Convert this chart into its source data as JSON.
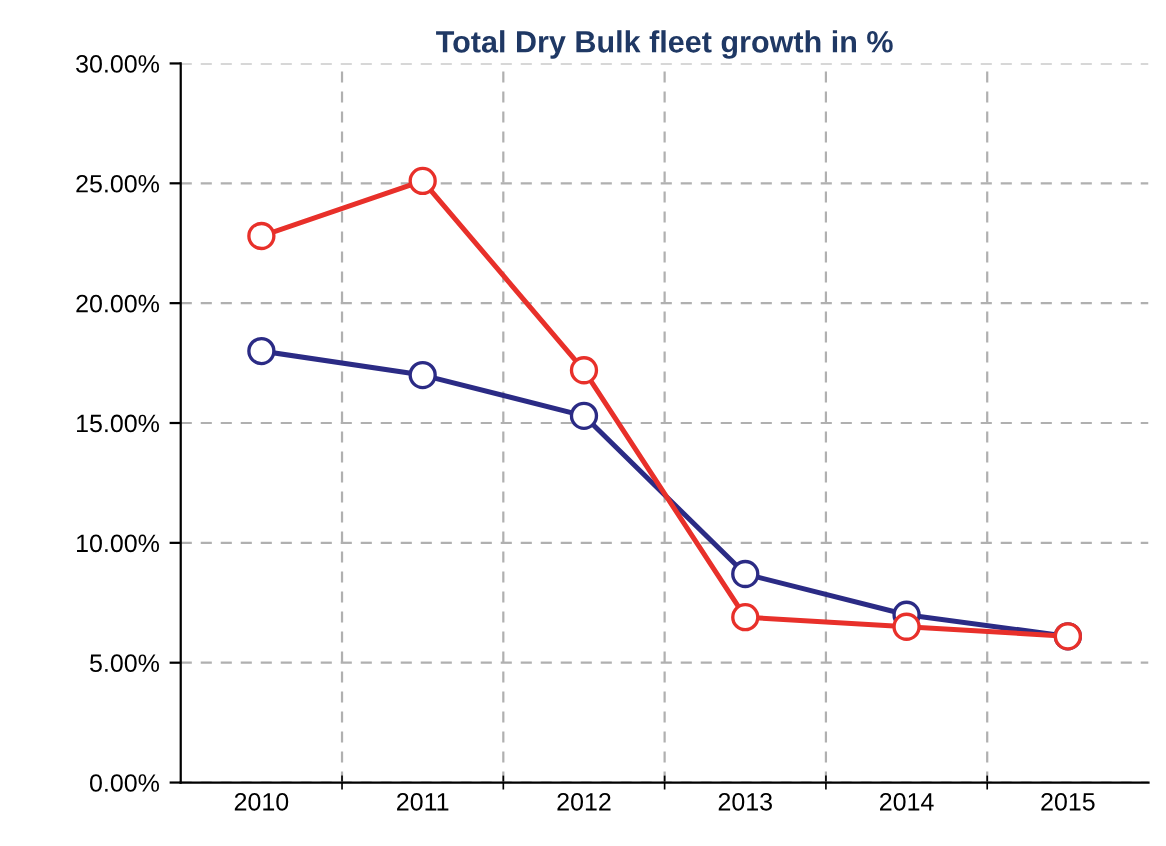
{
  "chart_data": {
    "type": "line",
    "title": "Total Dry Bulk fleet growth in %",
    "categories": [
      "2010",
      "2011",
      "2012",
      "2013",
      "2014",
      "2015"
    ],
    "series": [
      {
        "color": "#e8302a",
        "values": [
          22.8,
          25.1,
          17.2,
          6.9,
          6.5,
          6.1
        ]
      },
      {
        "color": "#2b2b85",
        "values": [
          18.0,
          17.0,
          15.3,
          8.7,
          7.0,
          6.1
        ]
      }
    ],
    "ylim": [
      0,
      30
    ],
    "yticks": [
      {
        "value": 0,
        "label": "0.00%"
      },
      {
        "value": 5,
        "label": "5.00%"
      },
      {
        "value": 10,
        "label": "10.00%"
      },
      {
        "value": 15,
        "label": "15.00%"
      },
      {
        "value": 20,
        "label": "20.00%"
      },
      {
        "value": 25,
        "label": "25.00%"
      },
      {
        "value": 30,
        "label": "30.00%"
      }
    ],
    "grid": true,
    "marker": "circle",
    "line_style": "solid"
  }
}
